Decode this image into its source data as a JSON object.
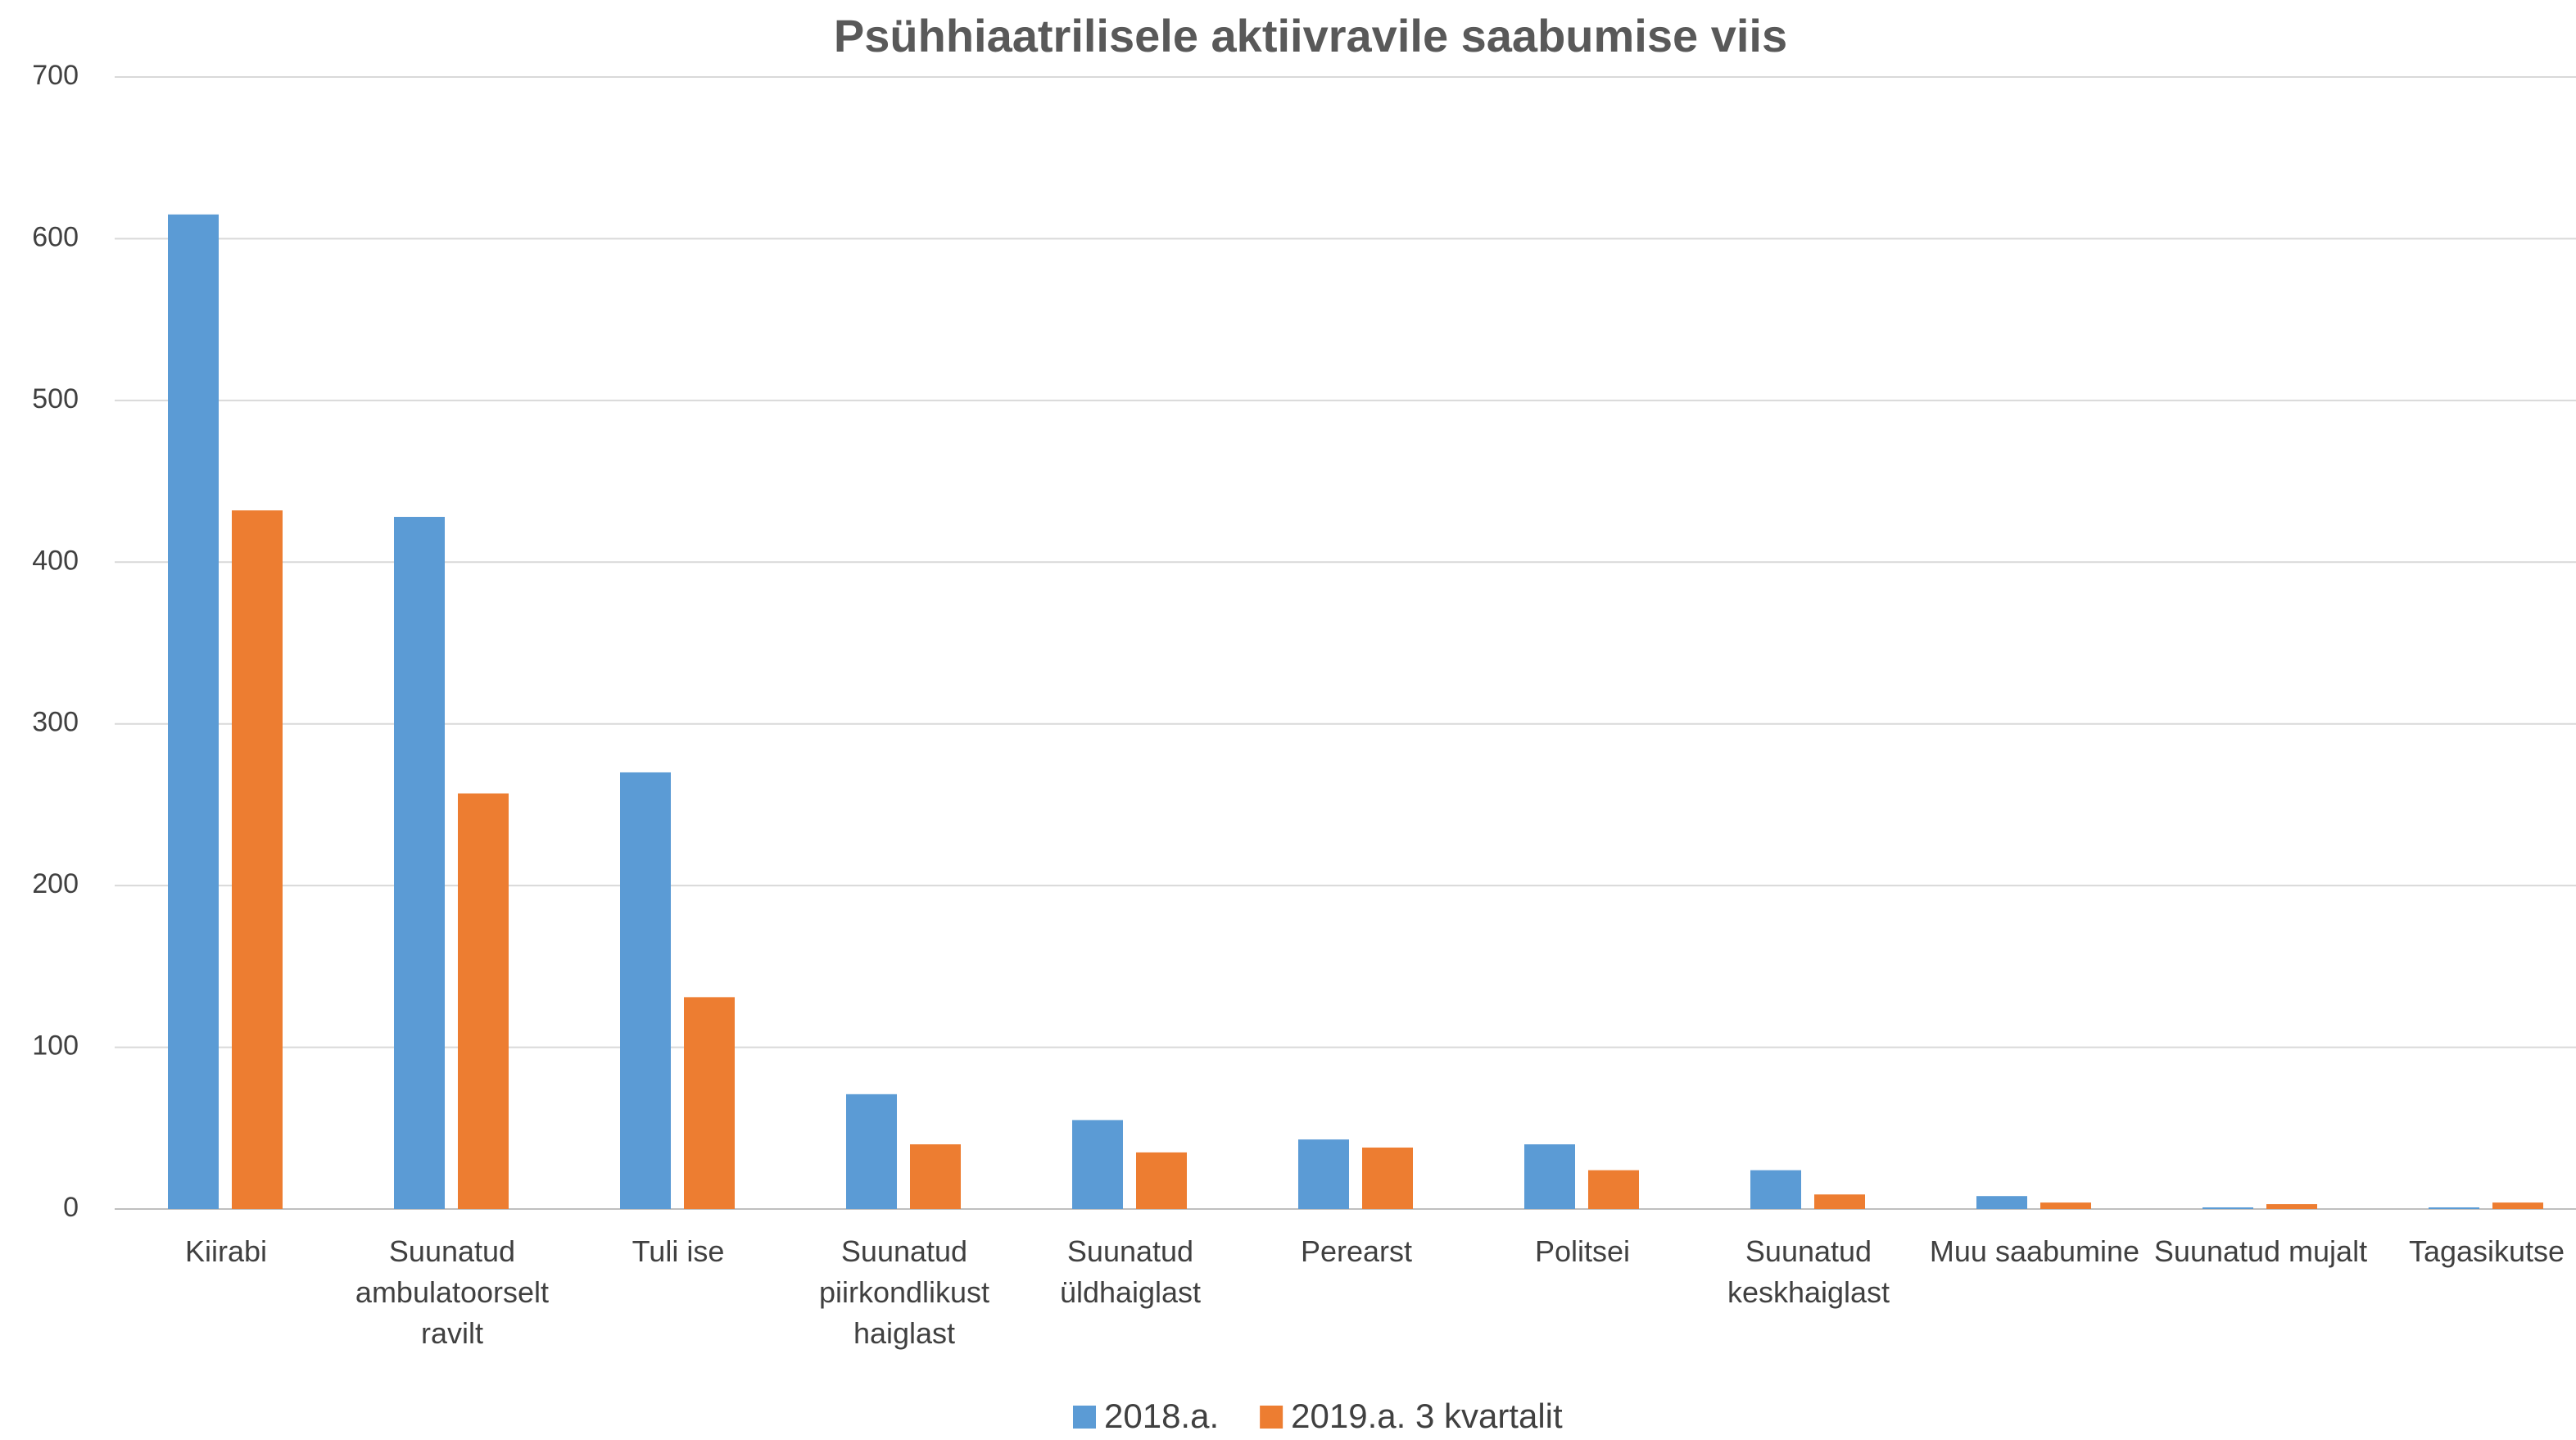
{
  "chart_data": {
    "type": "bar",
    "title": "Psühhiaatrilisele aktiivravile saabumise viis",
    "categories": [
      "Kiirabi",
      "Suunatud ambulatoorselt ravilt",
      "Tuli ise",
      "Suunatud piirkondlikust haiglast",
      "Suunatud üldhaiglast",
      "Perearst",
      "Politsei",
      "Suunatud keskhaiglast",
      "Muu saabumine",
      "Suunatud mujalt",
      "Tagasikutse"
    ],
    "series": [
      {
        "name": "2018.a.",
        "color": "#5b9bd5",
        "values": [
          615,
          428,
          270,
          71,
          55,
          43,
          40,
          24,
          8,
          1,
          1
        ]
      },
      {
        "name": "2019.a. 3 kvartalit",
        "color": "#ed7d31",
        "values": [
          432,
          257,
          131,
          40,
          35,
          38,
          24,
          9,
          4,
          3,
          4
        ]
      }
    ],
    "ylim": [
      0,
      700
    ],
    "yticks": [
      0,
      100,
      200,
      300,
      400,
      500,
      600,
      700
    ],
    "grid": true,
    "legend": "bottom"
  }
}
